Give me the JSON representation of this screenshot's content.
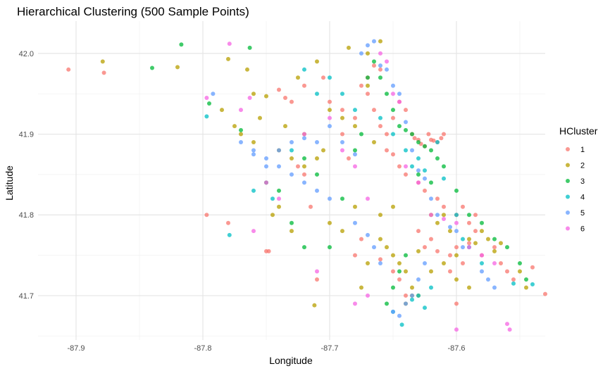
{
  "chart_data": {
    "type": "scatter",
    "title": "Hierarchical Clustering (500 Sample Points)",
    "xlabel": "Longitude",
    "ylabel": "Latitude",
    "xlim": [
      -87.93,
      -87.53
    ],
    "ylim": [
      41.645,
      42.04
    ],
    "x_ticks": [
      -87.9,
      -87.8,
      -87.7,
      -87.6
    ],
    "y_ticks": [
      41.7,
      41.8,
      41.9,
      42.0
    ],
    "x_tick_labels": [
      "-87.9",
      "-87.8",
      "-87.7",
      "-87.6"
    ],
    "y_tick_labels": [
      "41.7",
      "41.8",
      "41.9",
      "42.0"
    ],
    "grid": true,
    "legend": {
      "title": "HCluster",
      "position": "right"
    },
    "series": [
      {
        "name": "1",
        "color": "#F8766D",
        "points": [
          [
            -87.906,
            41.98
          ],
          [
            -87.878,
            41.976
          ],
          [
            -87.797,
            41.8
          ],
          [
            -87.78,
            41.79
          ],
          [
            -87.75,
            41.755
          ],
          [
            -87.748,
            41.755
          ],
          [
            -87.74,
            41.955
          ],
          [
            -87.735,
            41.945
          ],
          [
            -87.725,
            41.86
          ],
          [
            -87.72,
            41.85
          ],
          [
            -87.71,
            41.72
          ],
          [
            -87.69,
            41.9
          ],
          [
            -87.685,
            41.87
          ],
          [
            -87.68,
            41.75
          ],
          [
            -87.67,
            41.95
          ],
          [
            -87.665,
            41.93
          ],
          [
            -87.66,
            41.91
          ],
          [
            -87.655,
            41.88
          ],
          [
            -87.65,
            41.92
          ],
          [
            -87.645,
            41.94
          ],
          [
            -87.64,
            41.93
          ],
          [
            -87.635,
            41.9
          ],
          [
            -87.633,
            41.895
          ],
          [
            -87.63,
            41.893
          ],
          [
            -87.628,
            41.888
          ],
          [
            -87.625,
            41.885
          ],
          [
            -87.622,
            41.9
          ],
          [
            -87.62,
            41.893
          ],
          [
            -87.618,
            41.892
          ],
          [
            -87.615,
            41.89
          ],
          [
            -87.612,
            41.895
          ],
          [
            -87.61,
            41.9
          ],
          [
            -87.605,
            41.75
          ],
          [
            -87.6,
            41.76
          ],
          [
            -87.595,
            41.74
          ],
          [
            -87.59,
            41.765
          ],
          [
            -87.585,
            41.78
          ],
          [
            -87.58,
            41.75
          ],
          [
            -87.57,
            41.76
          ],
          [
            -87.565,
            41.74
          ],
          [
            -87.56,
            41.73
          ],
          [
            -87.555,
            41.72
          ],
          [
            -87.54,
            41.735
          ],
          [
            -87.53,
            41.702
          ],
          [
            -87.675,
            41.77
          ],
          [
            -87.66,
            41.745
          ],
          [
            -87.65,
            41.73
          ],
          [
            -87.645,
            41.72
          ],
          [
            -87.64,
            41.7
          ],
          [
            -87.63,
            41.78
          ],
          [
            -87.625,
            41.76
          ],
          [
            -87.62,
            41.77
          ],
          [
            -87.615,
            41.755
          ],
          [
            -87.605,
            41.73
          ],
          [
            -87.6,
            41.69
          ],
          [
            -87.59,
            41.79
          ],
          [
            -87.715,
            41.81
          ],
          [
            -87.73,
            41.94
          ],
          [
            -87.72,
            41.96
          ],
          [
            -87.705,
            41.97
          ],
          [
            -87.7,
            41.94
          ],
          [
            -87.69,
            41.93
          ],
          [
            -87.68,
            41.92
          ],
          [
            -87.675,
            41.96
          ],
          [
            -87.67,
            41.97
          ],
          [
            -87.665,
            41.985
          ],
          [
            -87.66,
            41.98
          ],
          [
            -87.655,
            41.9
          ],
          [
            -87.65,
            41.875
          ],
          [
            -87.645,
            41.86
          ],
          [
            -87.64,
            41.85
          ],
          [
            -87.63,
            41.84
          ],
          [
            -87.625,
            41.83
          ],
          [
            -87.615,
            41.82
          ],
          [
            -87.61,
            41.81
          ],
          [
            -87.6,
            41.8
          ],
          [
            -87.595,
            41.81
          ],
          [
            -87.585,
            41.8
          ]
        ]
      },
      {
        "name": "2",
        "color": "#B79F00",
        "points": [
          [
            -87.879,
            41.99
          ],
          [
            -87.82,
            41.983
          ],
          [
            -87.78,
            41.993
          ],
          [
            -87.765,
            41.98
          ],
          [
            -87.76,
            41.95
          ],
          [
            -87.75,
            41.947
          ],
          [
            -87.74,
            41.88
          ],
          [
            -87.73,
            41.87
          ],
          [
            -87.72,
            41.86
          ],
          [
            -87.71,
            41.87
          ],
          [
            -87.705,
            41.88
          ],
          [
            -87.7,
            41.93
          ],
          [
            -87.69,
            41.92
          ],
          [
            -87.68,
            41.91
          ],
          [
            -87.67,
            41.96
          ],
          [
            -87.665,
            41.89
          ],
          [
            -87.66,
            41.77
          ],
          [
            -87.655,
            41.76
          ],
          [
            -87.65,
            41.75
          ],
          [
            -87.645,
            41.74
          ],
          [
            -87.64,
            41.73
          ],
          [
            -87.635,
            41.71
          ],
          [
            -87.63,
            41.755
          ],
          [
            -87.62,
            41.8
          ],
          [
            -87.615,
            41.79
          ],
          [
            -87.61,
            41.8
          ],
          [
            -87.605,
            41.78
          ],
          [
            -87.6,
            41.75
          ],
          [
            -87.59,
            41.77
          ],
          [
            -87.585,
            41.765
          ],
          [
            -87.58,
            41.78
          ],
          [
            -87.575,
            41.77
          ],
          [
            -87.57,
            41.755
          ],
          [
            -87.565,
            41.765
          ],
          [
            -87.55,
            41.73
          ],
          [
            -87.545,
            41.71
          ],
          [
            -87.712,
            41.688
          ],
          [
            -87.73,
            41.78
          ],
          [
            -87.745,
            41.8
          ],
          [
            -87.74,
            41.81
          ],
          [
            -87.7,
            41.79
          ],
          [
            -87.69,
            41.78
          ],
          [
            -87.68,
            41.81
          ],
          [
            -87.675,
            41.71
          ],
          [
            -87.67,
            41.74
          ],
          [
            -87.66,
            41.8
          ],
          [
            -87.65,
            41.81
          ],
          [
            -87.64,
            41.69
          ],
          [
            -87.635,
            41.7
          ],
          [
            -87.63,
            41.7
          ],
          [
            -87.62,
            41.73
          ],
          [
            -87.61,
            41.74
          ],
          [
            -87.6,
            41.72
          ],
          [
            -87.59,
            41.71
          ],
          [
            -87.685,
            42.007
          ],
          [
            -87.66,
            42.015
          ],
          [
            -87.67,
            42.0
          ],
          [
            -87.71,
            41.99
          ],
          [
            -87.725,
            41.97
          ],
          [
            -87.72,
            41.9
          ],
          [
            -87.76,
            41.89
          ],
          [
            -87.77,
            41.9
          ],
          [
            -87.775,
            41.91
          ],
          [
            -87.785,
            41.93
          ],
          [
            -87.755,
            41.92
          ],
          [
            -87.735,
            41.91
          ]
        ]
      },
      {
        "name": "3",
        "color": "#00BA38",
        "points": [
          [
            -87.84,
            41.982
          ],
          [
            -87.817,
            42.011
          ],
          [
            -87.763,
            42.007
          ],
          [
            -87.795,
            41.938
          ],
          [
            -87.77,
            41.905
          ],
          [
            -87.72,
            41.87
          ],
          [
            -87.71,
            41.85
          ],
          [
            -87.69,
            41.82
          ],
          [
            -87.68,
            41.88
          ],
          [
            -87.675,
            41.9
          ],
          [
            -87.67,
            41.97
          ],
          [
            -87.665,
            41.99
          ],
          [
            -87.66,
            41.97
          ],
          [
            -87.655,
            41.95
          ],
          [
            -87.65,
            41.93
          ],
          [
            -87.645,
            41.91
          ],
          [
            -87.64,
            41.905
          ],
          [
            -87.635,
            41.9
          ],
          [
            -87.63,
            41.89
          ],
          [
            -87.625,
            41.885
          ],
          [
            -87.62,
            41.88
          ],
          [
            -87.615,
            41.87
          ],
          [
            -87.61,
            41.86
          ],
          [
            -87.6,
            41.83
          ],
          [
            -87.59,
            41.8
          ],
          [
            -87.58,
            41.79
          ],
          [
            -87.57,
            41.77
          ],
          [
            -87.56,
            41.76
          ],
          [
            -87.55,
            41.74
          ],
          [
            -87.545,
            41.72
          ],
          [
            -87.655,
            41.69
          ],
          [
            -87.65,
            41.71
          ],
          [
            -87.645,
            41.73
          ],
          [
            -87.64,
            41.75
          ],
          [
            -87.63,
            41.85
          ],
          [
            -87.62,
            41.84
          ],
          [
            -87.7,
            41.76
          ],
          [
            -87.72,
            41.76
          ],
          [
            -87.73,
            41.79
          ],
          [
            -87.74,
            41.83
          ],
          [
            -87.75,
            41.84
          ]
        ]
      },
      {
        "name": "4",
        "color": "#00BFC4",
        "points": [
          [
            -87.797,
            41.922
          ],
          [
            -87.779,
            41.775
          ],
          [
            -87.76,
            41.83
          ],
          [
            -87.745,
            41.82
          ],
          [
            -87.73,
            41.88
          ],
          [
            -87.72,
            41.98
          ],
          [
            -87.71,
            41.95
          ],
          [
            -87.7,
            41.97
          ],
          [
            -87.69,
            41.95
          ],
          [
            -87.68,
            41.93
          ],
          [
            -87.66,
            41.92
          ],
          [
            -87.65,
            41.9
          ],
          [
            -87.64,
            41.88
          ],
          [
            -87.635,
            41.86
          ],
          [
            -87.63,
            41.87
          ],
          [
            -87.625,
            41.855
          ],
          [
            -87.615,
            41.89
          ],
          [
            -87.61,
            41.845
          ],
          [
            -87.6,
            41.8
          ],
          [
            -87.595,
            41.77
          ],
          [
            -87.59,
            41.76
          ],
          [
            -87.58,
            41.74
          ],
          [
            -87.555,
            41.715
          ],
          [
            -87.54,
            41.714
          ],
          [
            -87.65,
            41.68
          ],
          [
            -87.643,
            41.664
          ],
          [
            -87.635,
            41.695
          ],
          [
            -87.63,
            41.7
          ],
          [
            -87.625,
            41.685
          ],
          [
            -87.62,
            41.71
          ]
        ]
      },
      {
        "name": "5",
        "color": "#619CFF",
        "points": [
          [
            -87.792,
            41.95
          ],
          [
            -87.77,
            41.89
          ],
          [
            -87.76,
            41.88
          ],
          [
            -87.75,
            41.86
          ],
          [
            -87.74,
            41.88
          ],
          [
            -87.73,
            41.89
          ],
          [
            -87.72,
            41.895
          ],
          [
            -87.71,
            41.89
          ],
          [
            -87.7,
            41.91
          ],
          [
            -87.69,
            41.89
          ],
          [
            -87.68,
            41.875
          ],
          [
            -87.675,
            42.0
          ],
          [
            -87.67,
            42.01
          ],
          [
            -87.665,
            42.015
          ],
          [
            -87.66,
            41.985
          ],
          [
            -87.655,
            41.98
          ],
          [
            -87.65,
            41.96
          ],
          [
            -87.645,
            41.95
          ],
          [
            -87.64,
            41.915
          ],
          [
            -87.635,
            41.88
          ],
          [
            -87.63,
            41.855
          ],
          [
            -87.625,
            41.845
          ],
          [
            -87.62,
            41.82
          ],
          [
            -87.615,
            41.8
          ],
          [
            -87.605,
            41.785
          ],
          [
            -87.6,
            41.78
          ],
          [
            -87.595,
            41.76
          ],
          [
            -87.58,
            41.73
          ],
          [
            -87.575,
            41.72
          ],
          [
            -87.57,
            41.71
          ],
          [
            -87.65,
            41.68
          ],
          [
            -87.645,
            41.675
          ],
          [
            -87.64,
            41.69
          ],
          [
            -87.635,
            41.7
          ],
          [
            -87.63,
            41.72
          ],
          [
            -87.625,
            41.74
          ],
          [
            -87.66,
            41.74
          ],
          [
            -87.665,
            41.76
          ],
          [
            -87.67,
            41.775
          ],
          [
            -87.68,
            41.79
          ],
          [
            -87.7,
            41.82
          ],
          [
            -87.71,
            41.83
          ],
          [
            -87.72,
            41.84
          ],
          [
            -87.73,
            41.85
          ],
          [
            -87.74,
            41.86
          ],
          [
            -87.75,
            41.87
          ],
          [
            -87.76,
            41.875
          ]
        ]
      },
      {
        "name": "6",
        "color": "#F564E3",
        "points": [
          [
            -87.779,
            42.012
          ],
          [
            -87.797,
            41.945
          ],
          [
            -87.77,
            41.93
          ],
          [
            -87.763,
            41.945
          ],
          [
            -87.76,
            41.78
          ],
          [
            -87.75,
            41.84
          ],
          [
            -87.74,
            41.82
          ],
          [
            -87.72,
            41.9
          ],
          [
            -87.71,
            41.73
          ],
          [
            -87.7,
            41.92
          ],
          [
            -87.69,
            41.88
          ],
          [
            -87.68,
            41.86
          ],
          [
            -87.67,
            41.82
          ],
          [
            -87.66,
            42.0
          ],
          [
            -87.655,
            41.99
          ],
          [
            -87.65,
            41.95
          ],
          [
            -87.645,
            41.94
          ],
          [
            -87.64,
            41.86
          ],
          [
            -87.63,
            41.84
          ],
          [
            -87.62,
            41.8
          ],
          [
            -87.61,
            41.795
          ],
          [
            -87.6,
            41.79
          ],
          [
            -87.59,
            41.76
          ],
          [
            -87.58,
            41.75
          ],
          [
            -87.57,
            41.74
          ],
          [
            -87.6,
            41.658
          ],
          [
            -87.56,
            41.665
          ],
          [
            -87.558,
            41.658
          ],
          [
            -87.68,
            41.69
          ],
          [
            -87.67,
            41.7
          ]
        ]
      }
    ]
  }
}
